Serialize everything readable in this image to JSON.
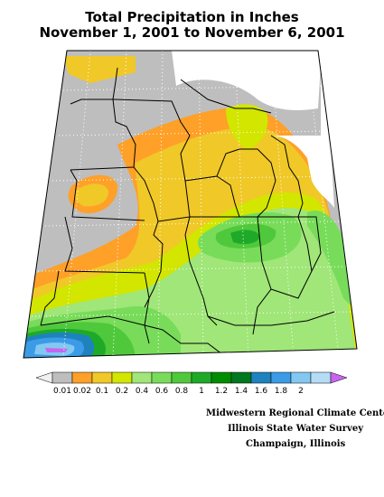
{
  "title": {
    "line1": "Total Precipitation in Inches",
    "line2": "November 1, 2001 to November 6, 2001"
  },
  "map": {
    "region": "Midwest United States",
    "base_color": "#bebebe",
    "state_border_color": "#000000",
    "graticule": "dotted"
  },
  "legend": {
    "colors": [
      "#f0f0f0",
      "#bebebe",
      "#ffa028",
      "#f0c828",
      "#d2e600",
      "#a0e678",
      "#78dc5a",
      "#50c83c",
      "#1eaa28",
      "#008c00",
      "#00781e",
      "#1e82be",
      "#3c9be6",
      "#82c8f0",
      "#b4dcf5",
      "#c864f0"
    ],
    "labels": [
      "0.01",
      "0.02",
      "0.1",
      "0.2",
      "0.4",
      "0.6",
      "0.8",
      "1",
      "1.2",
      "1.4",
      "1.6",
      "1.8",
      "2"
    ]
  },
  "credits": {
    "line1": "Midwestern Regional Climate Center",
    "line2": "Illinois State Water Survey",
    "line3": "Champaign, Illinois"
  }
}
